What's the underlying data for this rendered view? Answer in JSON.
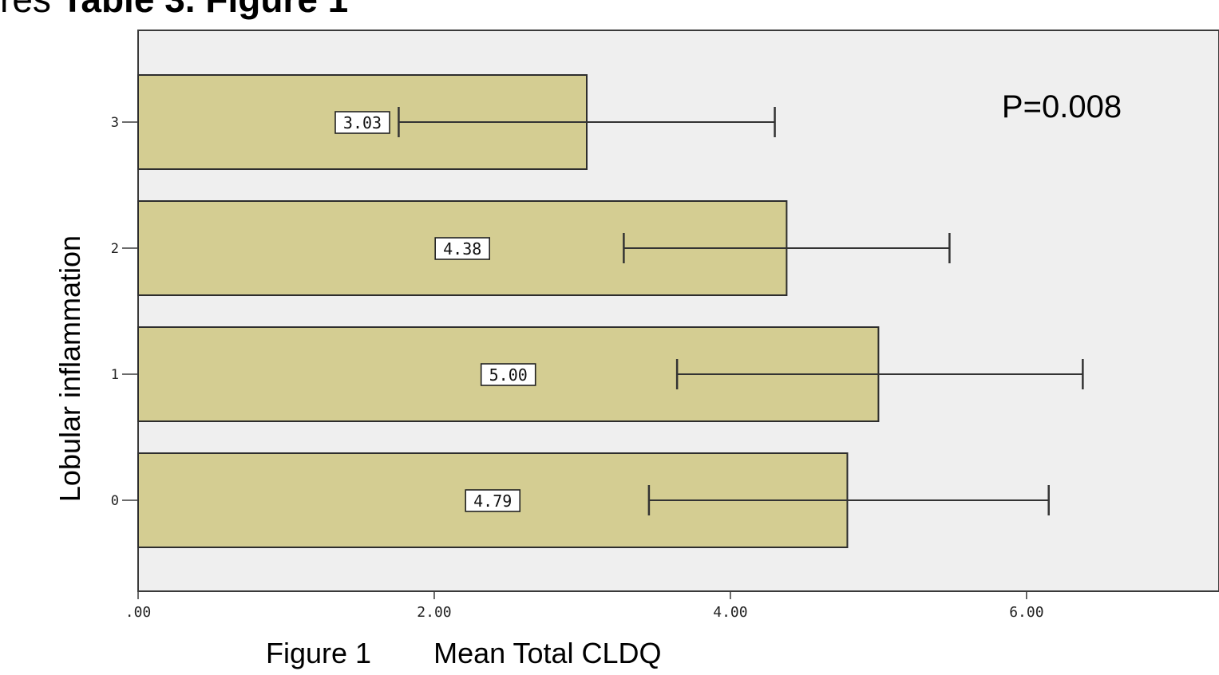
{
  "header": {
    "title_prefix": "res",
    "title_bold": "Table 3. Figure 1"
  },
  "caption": {
    "figure_label": "Figure 1",
    "axis_label": "Mean Total CLDQ"
  },
  "colors": {
    "bar_fill": "#d4cd92",
    "bar_stroke": "#2d2d2d",
    "plot_bg": "#efefef",
    "axis": "#3a3a3a"
  },
  "chart_data": {
    "type": "bar",
    "orientation": "horizontal",
    "ylabel": "Lobular inflammation",
    "xlabel": "Mean Total CLDQ",
    "categories": [
      "3",
      "2",
      "1",
      "0"
    ],
    "values": [
      3.03,
      4.38,
      5.0,
      4.79
    ],
    "value_labels": [
      "3.03",
      "4.38",
      "5.00",
      "4.79"
    ],
    "error_low": [
      1.76,
      3.28,
      3.64,
      3.45
    ],
    "error_high": [
      4.3,
      5.48,
      6.38,
      6.15
    ],
    "xlim": [
      0,
      7.3
    ],
    "xticks": [
      0,
      2,
      4,
      6
    ],
    "xtick_labels": [
      ".00",
      "2.00",
      "4.00",
      "6.00"
    ],
    "annotation": "P=0.008",
    "grid": false
  }
}
